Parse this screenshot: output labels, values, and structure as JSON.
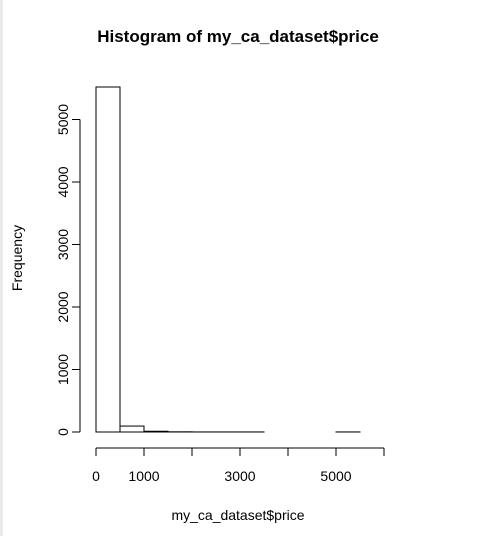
{
  "chart_data": {
    "type": "bar",
    "title": "Histogram of my_ca_dataset$price",
    "xlabel": "my_ca_dataset$price",
    "ylabel": "Frequency",
    "bin_edges": [
      0,
      500,
      1000,
      1500,
      2000,
      2500,
      3000,
      3500,
      4000,
      4500,
      5000,
      5500,
      6000
    ],
    "values": [
      5520,
      95,
      12,
      3,
      1,
      1,
      1,
      0,
      0,
      0,
      1,
      0
    ],
    "xlim": [
      0,
      6000
    ],
    "ylim": [
      0,
      5520
    ],
    "x_ticks": [
      0,
      1000,
      2000,
      3000,
      4000,
      5000,
      6000
    ],
    "x_tick_labels": [
      "0",
      "1000",
      "",
      "3000",
      "",
      "5000",
      ""
    ],
    "y_ticks": [
      0,
      1000,
      2000,
      3000,
      4000,
      5000
    ],
    "y_tick_labels": [
      "0",
      "1000",
      "2000",
      "3000",
      "4000",
      "5000"
    ],
    "grid": false,
    "legend": "none"
  }
}
